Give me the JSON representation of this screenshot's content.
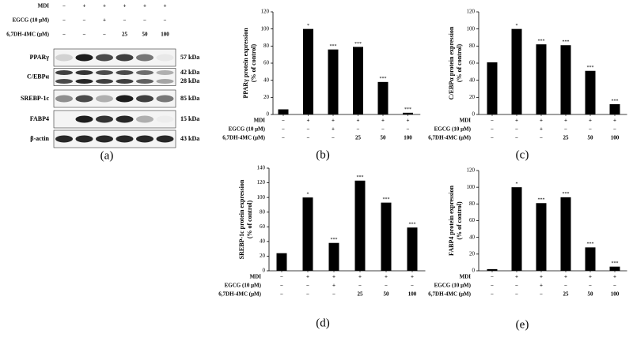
{
  "blot": {
    "panel_label": "(a)",
    "treatments": [
      {
        "label": "MDI",
        "values": [
          "−",
          "+",
          "+",
          "+",
          "+",
          "+"
        ]
      },
      {
        "label": "EGCG (10 μM)",
        "values": [
          "−",
          "−",
          "+",
          "−",
          "−",
          "−"
        ]
      },
      {
        "label": "6,7DH-4MC (μM)",
        "values": [
          "−",
          "−",
          "−",
          "25",
          "50",
          "100"
        ]
      }
    ],
    "bands": [
      {
        "label": "PPARγ",
        "sizes": [
          "57 kDa"
        ]
      },
      {
        "label": "C/EBPα",
        "sizes": [
          "42 kDa",
          "28 kDa"
        ]
      },
      {
        "label": "SREBP-1c",
        "sizes": [
          "85 kDa"
        ]
      },
      {
        "label": "FABP4",
        "sizes": [
          "15 kDa"
        ]
      },
      {
        "label": "β-actin",
        "sizes": [
          "43 kDa"
        ]
      }
    ]
  },
  "chart_data": [
    {
      "type": "bar",
      "panel_label": "(b)",
      "ylabel": [
        "PPARγ protein expression",
        "(% of control)"
      ],
      "values": [
        6,
        100,
        76,
        79,
        38,
        2
      ],
      "annotations": [
        null,
        "*",
        "***",
        "***",
        "***",
        "***"
      ],
      "color": "#000000",
      "ylim": [
        0,
        120
      ],
      "yticks": [
        0,
        20,
        40,
        60,
        80,
        100,
        120
      ],
      "treatments": [
        {
          "label": "MDI",
          "values": [
            "−",
            "+",
            "+",
            "+",
            "+",
            "+"
          ]
        },
        {
          "label": "EGCG (10 μM)",
          "values": [
            "−",
            "−",
            "+",
            "−",
            "−",
            "−"
          ]
        },
        {
          "label": "6,7DH-4MC (μM)",
          "values": [
            "−",
            "−",
            "−",
            "25",
            "50",
            "100"
          ]
        }
      ]
    },
    {
      "type": "bar",
      "panel_label": "(c)",
      "ylabel": [
        "C/EBPα protein expression",
        "(% of control)"
      ],
      "values": [
        61,
        100,
        82,
        81,
        51,
        12
      ],
      "annotations": [
        null,
        "*",
        "***",
        "***",
        "***",
        "***"
      ],
      "color": "#000000",
      "ylim": [
        0,
        120
      ],
      "yticks": [
        0,
        20,
        40,
        60,
        80,
        100,
        120
      ],
      "treatments": [
        {
          "label": "MDI",
          "values": [
            "−",
            "+",
            "+",
            "+",
            "+",
            "+"
          ]
        },
        {
          "label": "EGCG (10 μM)",
          "values": [
            "−",
            "−",
            "+",
            "−",
            "−",
            "−"
          ]
        },
        {
          "label": "6,7DH-4MC (μM)",
          "values": [
            "−",
            "−",
            "−",
            "25",
            "50",
            "100"
          ]
        }
      ]
    },
    {
      "type": "bar",
      "panel_label": "(d)",
      "ylabel": [
        "SREBP-1c protein expression",
        "(% of control)"
      ],
      "values": [
        24,
        100,
        38,
        123,
        93,
        59
      ],
      "annotations": [
        null,
        "*",
        "***",
        "***",
        "***",
        "***"
      ],
      "color": "#000000",
      "ylim": [
        0,
        140
      ],
      "yticks": [
        0,
        20,
        40,
        60,
        80,
        100,
        120,
        140
      ],
      "treatments": [
        {
          "label": "MDI",
          "values": [
            "−",
            "+",
            "+",
            "+",
            "+",
            "+"
          ]
        },
        {
          "label": "EGCG (10 μM)",
          "values": [
            "−",
            "−",
            "+",
            "−",
            "−",
            "−"
          ]
        },
        {
          "label": "6,7DH-4MC (μM)",
          "values": [
            "−",
            "−",
            "−",
            "25",
            "50",
            "100"
          ]
        }
      ]
    },
    {
      "type": "bar",
      "panel_label": "(e)",
      "ylabel": [
        "FABP4 protein expression",
        "(% of control)"
      ],
      "values": [
        2,
        100,
        81,
        88,
        28,
        5
      ],
      "annotations": [
        null,
        "*",
        "***",
        "***",
        "***",
        "***"
      ],
      "color": "#000000",
      "ylim": [
        0,
        120
      ],
      "yticks": [
        0,
        20,
        40,
        60,
        80,
        100,
        120
      ],
      "treatments": [
        {
          "label": "MDI",
          "values": [
            "−",
            "+",
            "+",
            "+",
            "+",
            "+"
          ]
        },
        {
          "label": "EGCG (10 μM)",
          "values": [
            "−",
            "−",
            "+",
            "−",
            "−",
            "−"
          ]
        },
        {
          "label": "6,7DH-4MC (μM)",
          "values": [
            "−",
            "−",
            "−",
            "25",
            "50",
            "100"
          ]
        }
      ]
    }
  ]
}
